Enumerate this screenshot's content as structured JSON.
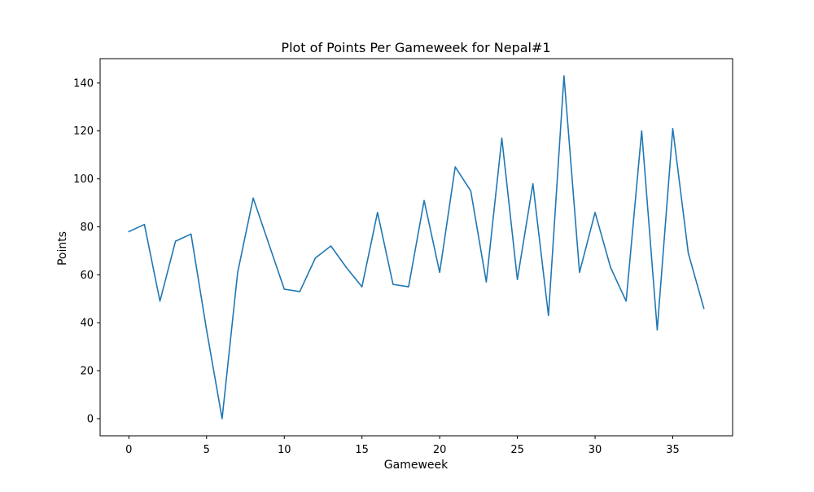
{
  "chart_data": {
    "type": "line",
    "title": "Plot of Points Per Gameweek for Nepal#1",
    "xlabel": "Gameweek",
    "ylabel": "Points",
    "xlim": [
      -1.85,
      38.85
    ],
    "ylim": [
      -7.15,
      150.15
    ],
    "xticks": [
      0,
      5,
      10,
      15,
      20,
      25,
      30,
      35
    ],
    "yticks": [
      0,
      20,
      40,
      60,
      80,
      100,
      120,
      140
    ],
    "grid": false,
    "legend": "none",
    "line_color": "#1f77b4",
    "series": [
      {
        "x": [
          0,
          1,
          2,
          3,
          4,
          5,
          6,
          7,
          8,
          9,
          10,
          11,
          12,
          13,
          14,
          15,
          16,
          17,
          18,
          19,
          20,
          21,
          22,
          23,
          24,
          25,
          26,
          27,
          28,
          29,
          30,
          31,
          32,
          33,
          34,
          35,
          36,
          37
        ],
        "values": [
          78,
          81,
          49,
          74,
          77,
          37,
          0,
          61,
          92,
          73,
          54,
          53,
          67,
          72,
          63,
          55,
          86,
          56,
          55,
          91,
          61,
          105,
          95,
          57,
          117,
          58,
          98,
          43,
          143,
          61,
          86,
          63,
          49,
          120,
          37,
          121,
          69,
          46
        ]
      }
    ]
  }
}
